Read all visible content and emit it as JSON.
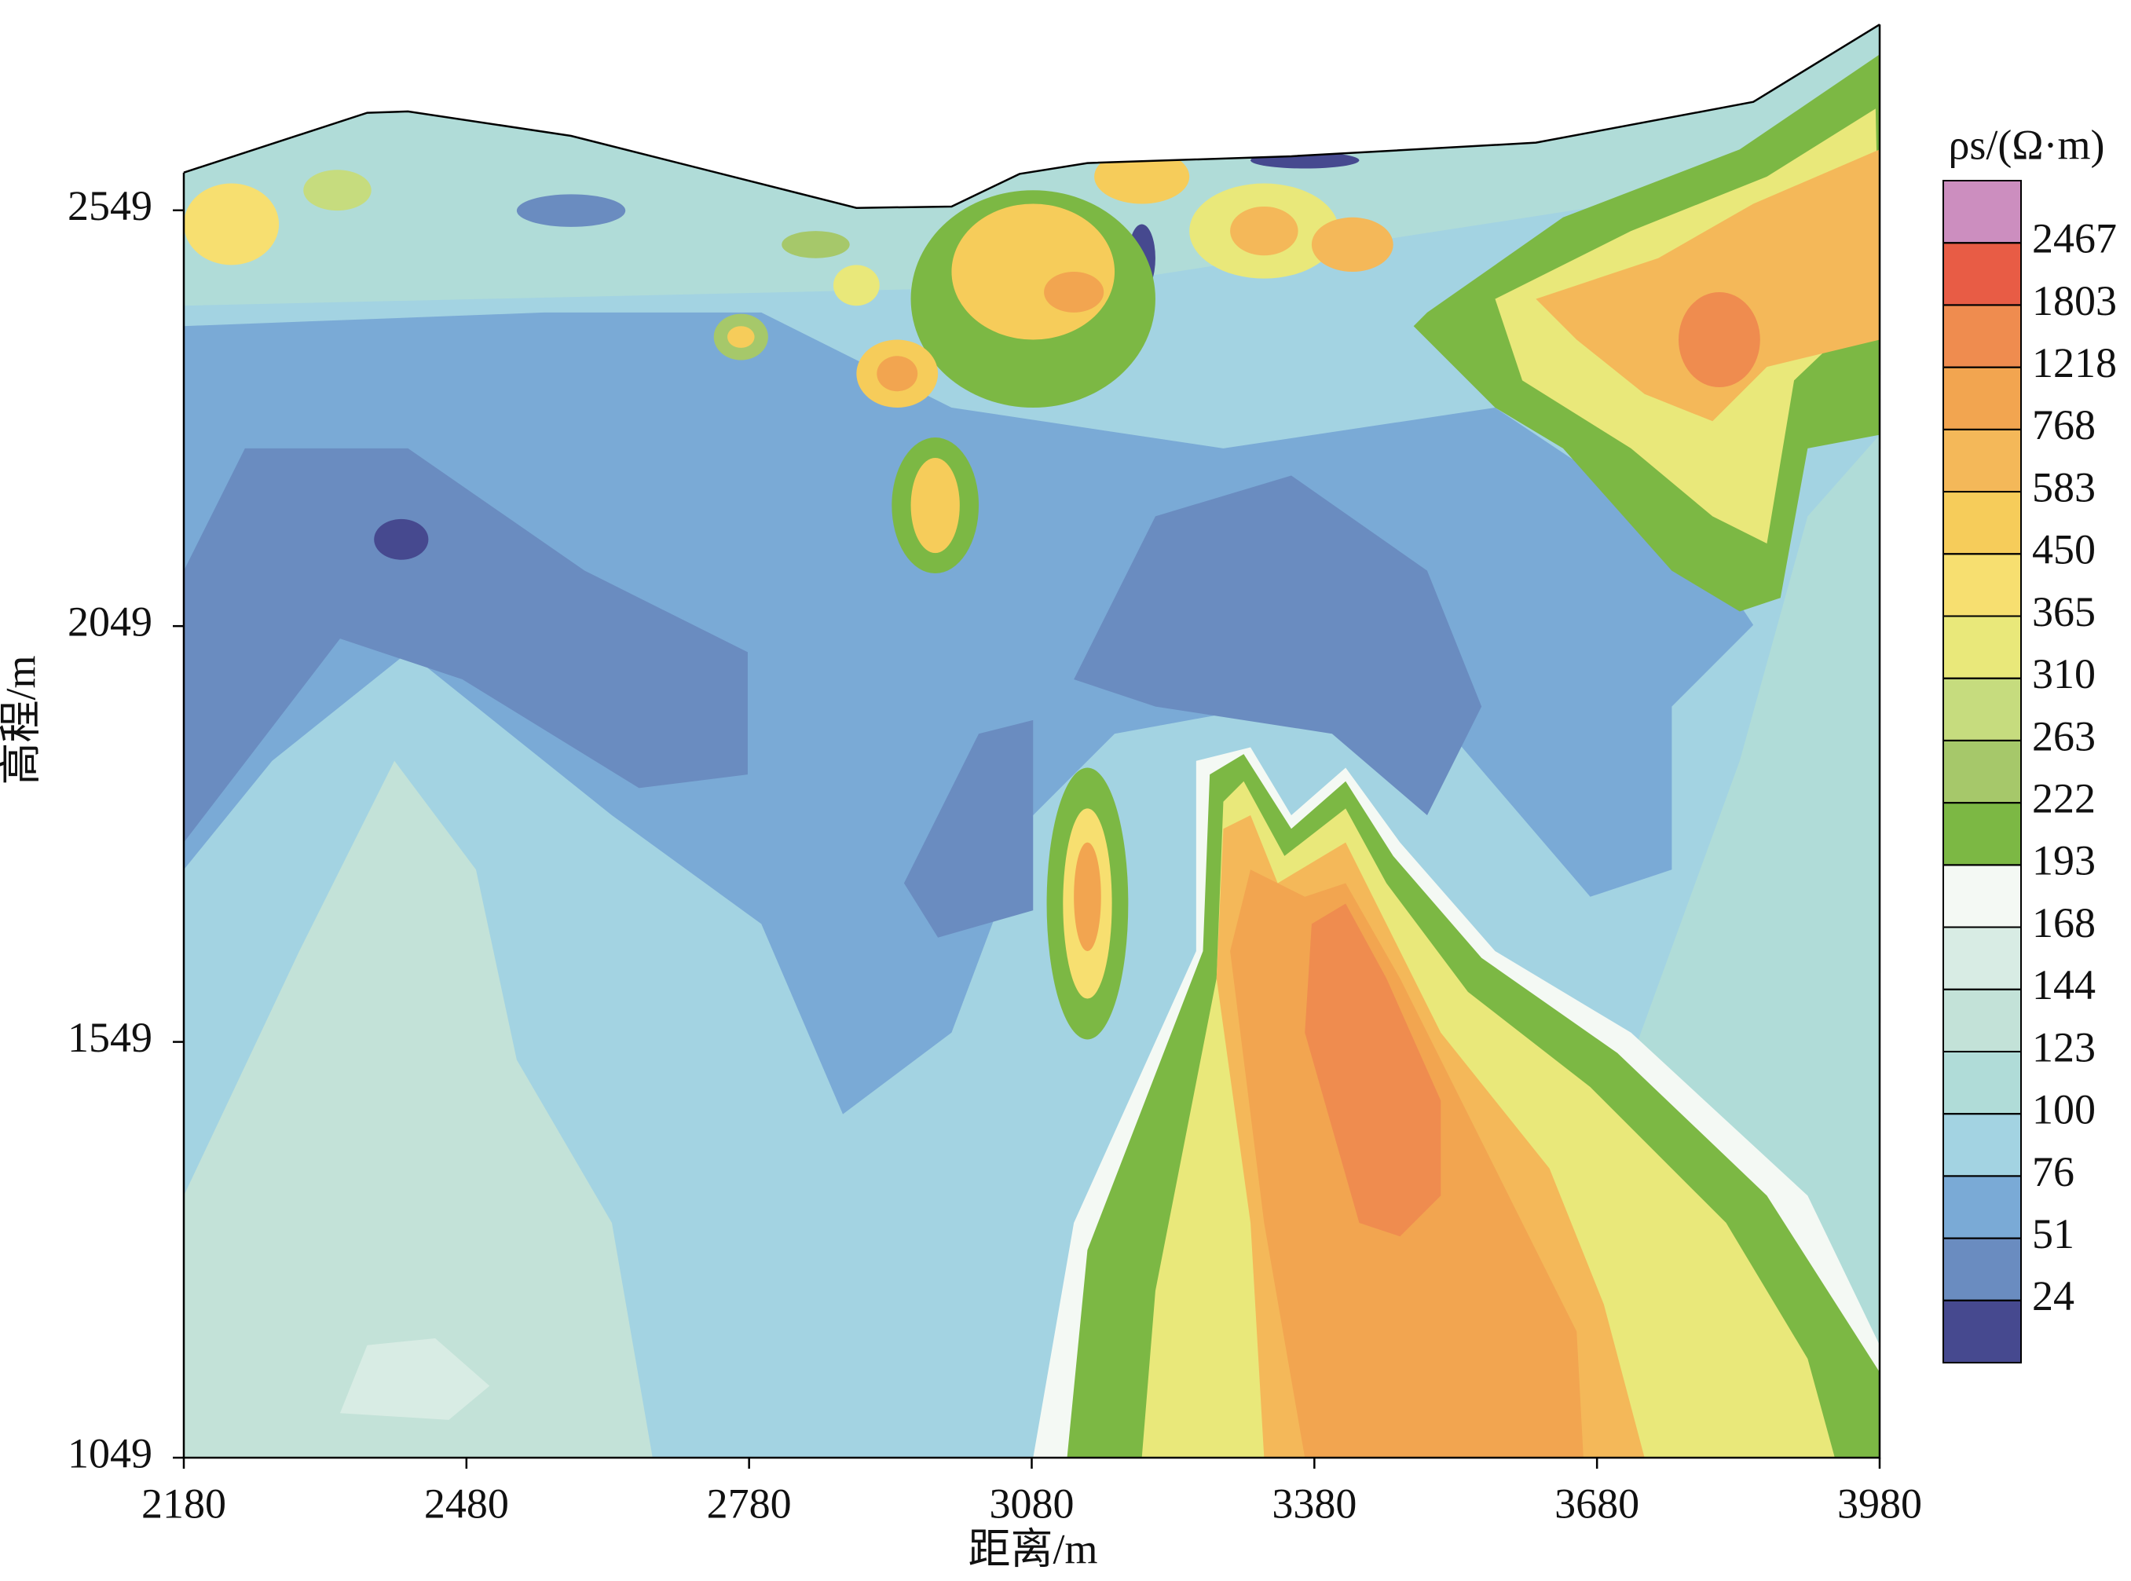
{
  "chart_data": {
    "type": "contour",
    "x_label": "距离/m",
    "y_label": "高程/m",
    "colorbar_label": "ρs/(Ω·m)",
    "xlim": [
      2180,
      3980
    ],
    "xticks": [
      2180,
      2480,
      2780,
      3080,
      3380,
      3680,
      3980
    ],
    "ylim": [
      1049,
      2800
    ],
    "yticks": [
      1049,
      1549,
      2049,
      2549
    ],
    "levels": [
      24,
      51,
      76,
      100,
      123,
      144,
      168,
      193,
      222,
      263,
      310,
      365,
      450,
      583,
      768,
      1218,
      1803,
      2467
    ],
    "colors": [
      "#46498f",
      "#6a8cc0",
      "#7aaad6",
      "#a3d3e2",
      "#b0dcd8",
      "#c3e2d8",
      "#d8ece4",
      "#f4f9f4",
      "#7cb844",
      "#a6c86a",
      "#c6dc7e",
      "#e9e87a",
      "#f7df70",
      "#f6cc5a",
      "#f4b859",
      "#f2a550",
      "#ef8c4f",
      "#e85c45",
      "#cc8ebf"
    ]
  }
}
